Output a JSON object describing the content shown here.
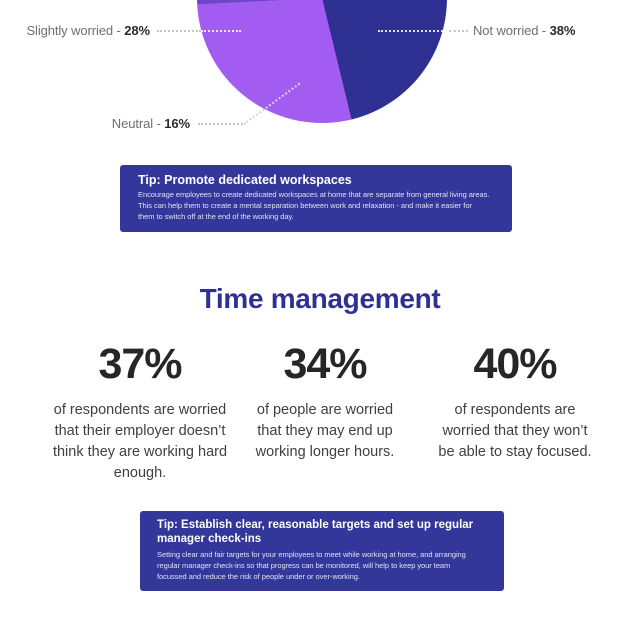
{
  "chart_data": {
    "type": "pie",
    "title": "",
    "segments": [
      {
        "label": "Not worried",
        "value": 38,
        "color": "#2e3192"
      },
      {
        "label": "Slightly worried",
        "value": 28,
        "color": "#a35cf2"
      },
      {
        "label": "Neutral",
        "value": 16,
        "color": "#6f47c6"
      }
    ],
    "layout": {
      "start_angle_deg": 29.5,
      "hidden_remainder_pct": 18,
      "note": "top of pie cropped by image edge",
      "legend_position": "callout-labels"
    }
  },
  "pie_section": {
    "labels": {
      "slightly": {
        "name": "Slightly worried - ",
        "pct": "28%"
      },
      "not_worried": {
        "name": "Not worried - ",
        "pct": "38%"
      },
      "neutral": {
        "name": "Neutral - ",
        "pct": "16%"
      }
    }
  },
  "tips": [
    {
      "title": "Tip: Promote dedicated workspaces",
      "body": "Encourage employees to create dedicated workspaces at home that are separate from general living areas.\nThis can help them to create a mental separation between work and relaxation - and make it easier for\nthem to switch off at the end of the working day."
    },
    {
      "title": "Tip: Establish clear, reasonable targets and set up regular\nmanager check-ins",
      "body": "Setting clear and fair targets for your employees to meet while working at home, and arranging\nregular manager check-ins so that progress can be monitored, will help to keep your team\nfocussed and reduce the risk of people under or over-working."
    }
  ],
  "time_management": {
    "heading": "Time management",
    "stats": [
      {
        "value": "37%",
        "text": "of respondents are worried that their employer doesn’t think they are working hard enough."
      },
      {
        "value": "34%",
        "text": "of people are worried that they may end up working longer hours."
      },
      {
        "value": "40%",
        "text": "of respondents are worried that they won’t be able to stay focused."
      }
    ]
  },
  "colors": {
    "pie_not_worried": "#2e3192",
    "pie_slightly_worried": "#a35cf2",
    "pie_neutral": "#6f47c6",
    "tip_box_bg": "#333799",
    "heading": "#2e3192",
    "stat_number": "#262626",
    "body_text": "#404040",
    "label_grey": "#6f6f6f",
    "leader_dots": "#c6c6c6"
  }
}
